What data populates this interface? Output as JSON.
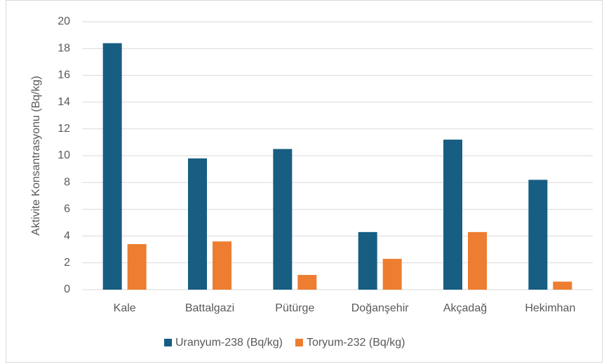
{
  "chart_data": {
    "type": "bar",
    "y_label": "Aktivite Konsantrasyonu (Bq/kg)",
    "categories": [
      "Kale",
      "Battalgazi",
      "Pütürge",
      "Doğanşehir",
      "Akçadağ",
      "Hekimhan"
    ],
    "series": [
      {
        "name": "Uranyum-238 (Bq/kg)",
        "color": "#175e82",
        "values": [
          18.4,
          9.8,
          10.5,
          4.3,
          11.2,
          8.2
        ]
      },
      {
        "name": "Toryum-232 (Bq/kg)",
        "color": "#ed7d31",
        "values": [
          3.4,
          3.6,
          1.1,
          2.3,
          4.3,
          0.6
        ]
      }
    ],
    "ylim": [
      0,
      20
    ],
    "yticks": [
      0,
      2,
      4,
      6,
      8,
      10,
      12,
      14,
      16,
      18,
      20
    ],
    "grid": true,
    "legend": "bottom"
  }
}
